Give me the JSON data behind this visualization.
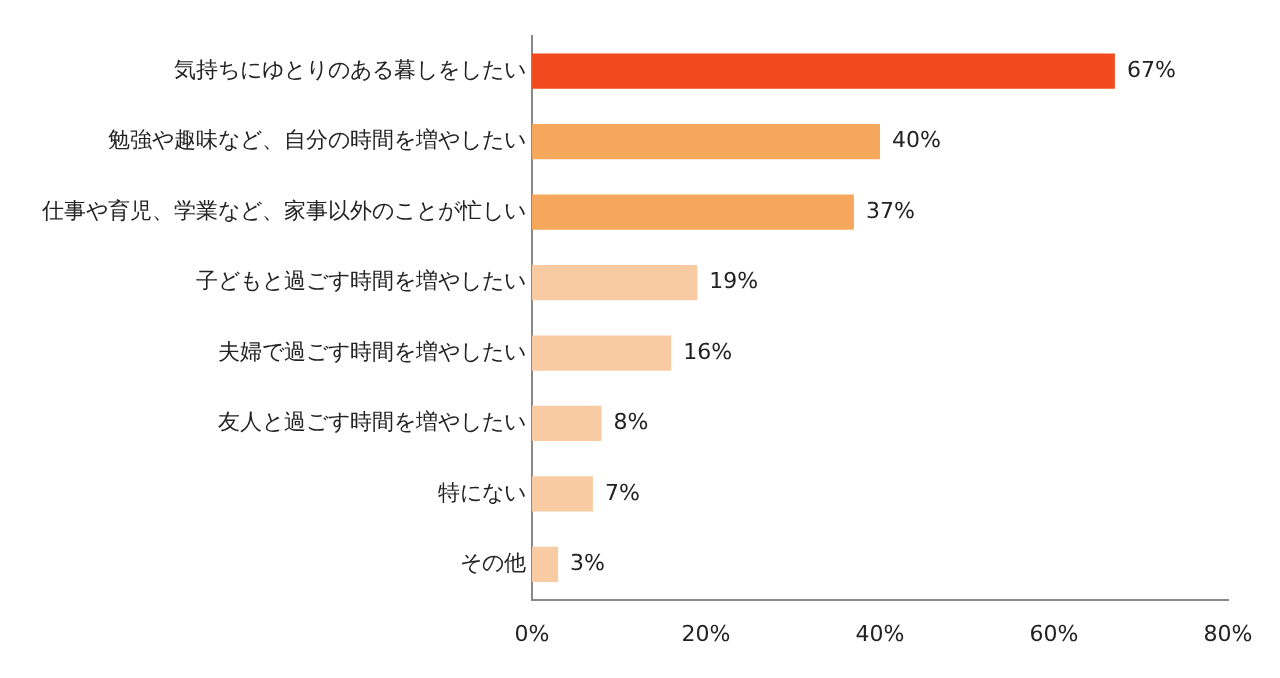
{
  "chart_data": {
    "type": "bar",
    "orientation": "horizontal",
    "categories": [
      "気持ちにゆとりのある暮しをしたい",
      "勉強や趣味など、自分の時間を増やしたい",
      "仕事や育児、学業など、家事以外のことが忙しい",
      "子どもと過ごす時間を増やしたい",
      "夫婦で過ごす時間を増やしたい",
      "友人と過ごす時間を増やしたい",
      "特にない",
      "その他"
    ],
    "values": [
      67,
      40,
      37,
      19,
      16,
      8,
      7,
      3
    ],
    "value_labels": [
      "67%",
      "40%",
      "37%",
      "19%",
      "16%",
      "8%",
      "7%",
      "3%"
    ],
    "colors": [
      "#f04a1e",
      "#f5a85c",
      "#f5a85c",
      "#f9cba2",
      "#f9cba2",
      "#f9cba2",
      "#f9cba2",
      "#f9cba2"
    ],
    "xlim": [
      0,
      80
    ],
    "xticks": [
      {
        "value": 0,
        "label": "0%"
      },
      {
        "value": 20,
        "label": "20%"
      },
      {
        "value": 40,
        "label": "40%"
      },
      {
        "value": 60,
        "label": "60%"
      },
      {
        "value": 80,
        "label": "80%"
      }
    ],
    "grid": false,
    "legend": false
  }
}
